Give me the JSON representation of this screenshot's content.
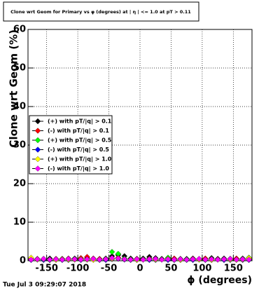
{
  "chart_data": {
    "type": "scatter",
    "title": "Clone wrt Geom for Primary vs φ (degrees) at | η | <= 1.0 at pT > 0.11",
    "x_label": "ϕ (degrees)",
    "y_label": "Clone wrt Geom (%)",
    "timestamp": "Tue Jul  3 09:29:07 2018",
    "xlim": [
      -180,
      180
    ],
    "ylim": [
      0,
      60
    ],
    "xticks": [
      -150,
      -100,
      -50,
      0,
      50,
      100,
      150
    ],
    "yticks": [
      0,
      10,
      20,
      30,
      40,
      50,
      60
    ],
    "grid": true,
    "legend": "left",
    "x": [
      -175,
      -165,
      -155,
      -145,
      -135,
      -125,
      -115,
      -105,
      -95,
      -85,
      -75,
      -65,
      -55,
      -45,
      -35,
      -25,
      -15,
      -5,
      5,
      15,
      25,
      35,
      45,
      55,
      65,
      75,
      85,
      95,
      105,
      115,
      125,
      135,
      145,
      155,
      165,
      175
    ],
    "series": [
      {
        "name": "(+) with pT/|q| > 0.1",
        "color": "#000000",
        "values": [
          0.5,
          0.4,
          0.5,
          0.6,
          0.4,
          0.5,
          0.5,
          0.6,
          0.5,
          0.7,
          0.5,
          0.4,
          0.6,
          1.2,
          1.5,
          1.2,
          0.6,
          0.5,
          0.6,
          1.0,
          0.7,
          0.5,
          0.6,
          0.4,
          0.5,
          0.5,
          0.6,
          0.4,
          0.5,
          0.7,
          0.5,
          0.6,
          0.5,
          0.4,
          0.6,
          0.5
        ]
      },
      {
        "name": "(-) with pT/|q| > 0.1",
        "color": "#ff0000",
        "values": [
          0.4,
          0.5,
          0.4,
          0.3,
          0.5,
          0.4,
          0.6,
          0.5,
          0.7,
          1.0,
          0.6,
          0.5,
          0.4,
          0.6,
          0.8,
          0.5,
          0.4,
          0.5,
          0.3,
          0.6,
          0.5,
          0.4,
          0.5,
          0.6,
          0.4,
          0.3,
          0.5,
          0.4,
          0.6,
          0.5,
          0.4,
          0.3,
          0.5,
          0.6,
          0.4,
          0.5
        ]
      },
      {
        "name": "(+) with pT/|q| > 0.5",
        "color": "#00ff00",
        "values": [
          0.3,
          0.4,
          0.3,
          0.2,
          0.4,
          0.3,
          0.3,
          0.5,
          0.4,
          0.3,
          0.4,
          0.3,
          0.5,
          2.3,
          1.8,
          0.6,
          0.4,
          0.3,
          0.4,
          0.5,
          0.3,
          0.4,
          0.8,
          0.3,
          0.2,
          0.4,
          0.3,
          0.4,
          0.3,
          0.5,
          0.3,
          0.4,
          0.3,
          0.3,
          0.5,
          0.8
        ]
      },
      {
        "name": "(-) with pT/|q| > 0.5",
        "color": "#0000ff",
        "values": [
          0.2,
          0.3,
          0.2,
          0.2,
          0.3,
          0.2,
          0.2,
          0.3,
          0.2,
          0.4,
          0.3,
          0.2,
          0.2,
          0.4,
          0.5,
          0.3,
          0.2,
          0.2,
          0.3,
          0.2,
          0.2,
          0.3,
          0.2,
          0.2,
          0.3,
          0.2,
          0.2,
          0.3,
          0.2,
          0.2,
          0.3,
          0.2,
          0.2,
          0.3,
          0.2,
          0.2
        ]
      },
      {
        "name": "(+) with pT/|q| > 1.0",
        "color": "#ffff00",
        "values": [
          0.8,
          0.3,
          0.4,
          0.3,
          0.2,
          0.4,
          0.3,
          0.3,
          0.4,
          0.3,
          0.2,
          0.3,
          0.4,
          0.5,
          0.6,
          0.4,
          0.3,
          0.2,
          0.3,
          0.4,
          0.3,
          0.3,
          0.5,
          0.3,
          0.2,
          0.3,
          0.4,
          0.3,
          0.3,
          0.2,
          0.3,
          0.4,
          0.3,
          0.2,
          0.3,
          0.7
        ]
      },
      {
        "name": "(-) with pT/|q| > 1.0",
        "color": "#ff00ff",
        "values": [
          0.3,
          0.4,
          0.5,
          0.3,
          0.4,
          0.3,
          0.5,
          0.4,
          0.3,
          0.4,
          0.5,
          0.3,
          0.4,
          0.7,
          0.6,
          0.4,
          0.3,
          0.4,
          0.3,
          0.4,
          0.5,
          0.3,
          0.4,
          0.3,
          0.4,
          0.3,
          0.4,
          0.5,
          0.3,
          0.4,
          0.3,
          0.4,
          0.5,
          0.3,
          0.4,
          0.3
        ]
      }
    ]
  }
}
